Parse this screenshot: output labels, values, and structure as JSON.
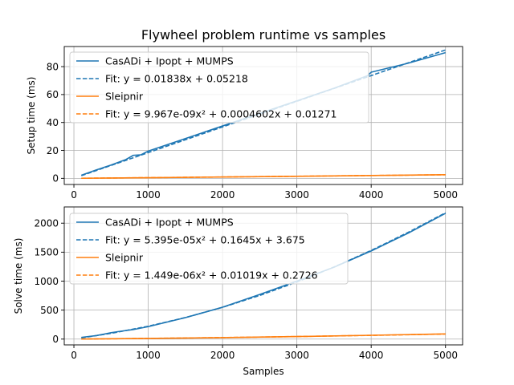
{
  "figure": {
    "title": "Flywheel problem runtime vs samples",
    "xlabel": "Samples"
  },
  "colors": {
    "casadi": "#1f77b4",
    "sleipnir": "#ff7f0e"
  },
  "chart_data": [
    {
      "type": "line",
      "title": "Flywheel problem runtime vs samples",
      "xlabel": "",
      "ylabel": "Setup time (ms)",
      "xlim": [
        -130,
        5230
      ],
      "ylim": [
        -4.4,
        94.4
      ],
      "xticks": [
        0,
        1000,
        2000,
        3000,
        4000,
        5000
      ],
      "yticks": [
        0,
        20,
        40,
        60,
        80
      ],
      "grid": true,
      "legend": "upper-left",
      "series": [
        {
          "name": "CasADi + Ipopt + MUMPS",
          "style": "solid",
          "color_key": "casadi",
          "x": [
            100,
            300,
            500,
            700,
            800,
            900,
            1000,
            1500,
            2000,
            2500,
            3000,
            3500,
            3950,
            4000,
            4500,
            5000
          ],
          "y": [
            2.2,
            6.0,
            9.5,
            13.5,
            16.5,
            16.8,
            19.5,
            28.5,
            37.5,
            46.5,
            55.5,
            64.5,
            73.5,
            76.0,
            82.5,
            90.0
          ]
        },
        {
          "name": "Fit: y = 0.01838x + 0.05218",
          "style": "dashed",
          "color_key": "casadi",
          "x": [
            100,
            5000
          ],
          "y": [
            1.89,
            91.95
          ]
        },
        {
          "name": "Sleipnir",
          "style": "solid",
          "color_key": "sleipnir",
          "x": [
            100,
            500,
            1000,
            2000,
            3000,
            4000,
            5000
          ],
          "y": [
            0.06,
            0.25,
            0.47,
            0.96,
            1.47,
            2.02,
            2.6
          ]
        },
        {
          "name": "Fit: y = 9.967e-09x² + 0.0004602x + 0.01271",
          "style": "dashed",
          "color_key": "sleipnir",
          "x": [
            100,
            1000,
            2000,
            3000,
            4000,
            5000
          ],
          "y": [
            0.06,
            0.48,
            0.97,
            1.49,
            2.02,
            2.56
          ]
        }
      ]
    },
    {
      "type": "line",
      "title": "",
      "xlabel": "Samples",
      "ylabel": "Solve time (ms)",
      "xlim": [
        -130,
        5230
      ],
      "ylim": [
        -100,
        2280
      ],
      "xticks": [
        0,
        1000,
        2000,
        3000,
        4000,
        5000
      ],
      "yticks": [
        0,
        500,
        1000,
        1500,
        2000
      ],
      "grid": true,
      "legend": "upper-left",
      "series": [
        {
          "name": "CasADi + Ipopt + MUMPS",
          "style": "solid",
          "color_key": "casadi",
          "x": [
            100,
            300,
            500,
            600,
            800,
            1000,
            1500,
            2000,
            2500,
            3000,
            3500,
            4000,
            4500,
            5000
          ],
          "y": [
            30,
            60,
            110,
            130,
            165,
            215,
            370,
            550,
            770,
            1000,
            1240,
            1520,
            1830,
            2170
          ]
        },
        {
          "name": "Fit: y = 5.395e-05x² + 0.1645x + 3.675",
          "style": "dashed",
          "color_key": "casadi",
          "x": [
            100,
            500,
            1000,
            1500,
            2000,
            2500,
            3000,
            3500,
            4000,
            4500,
            5000
          ],
          "y": [
            20.7,
            99.4,
            222.1,
            371.6,
            548.6,
            752.8,
            984.6,
            1243.5,
            1529.5,
            1843.1,
            2179.5
          ]
        },
        {
          "name": "Sleipnir",
          "style": "solid",
          "color_key": "sleipnir",
          "x": [
            100,
            1000,
            2000,
            3000,
            4000,
            5000
          ],
          "y": [
            1.3,
            11,
            26,
            44,
            66,
            90
          ]
        },
        {
          "name": "Fit: y = 1.449e-06x² + 0.01019x + 0.2726",
          "style": "dashed",
          "color_key": "sleipnir",
          "x": [
            100,
            1000,
            2000,
            3000,
            4000,
            5000
          ],
          "y": [
            1.3,
            11.9,
            26.5,
            43.9,
            64.2,
            87.4
          ]
        }
      ]
    }
  ]
}
